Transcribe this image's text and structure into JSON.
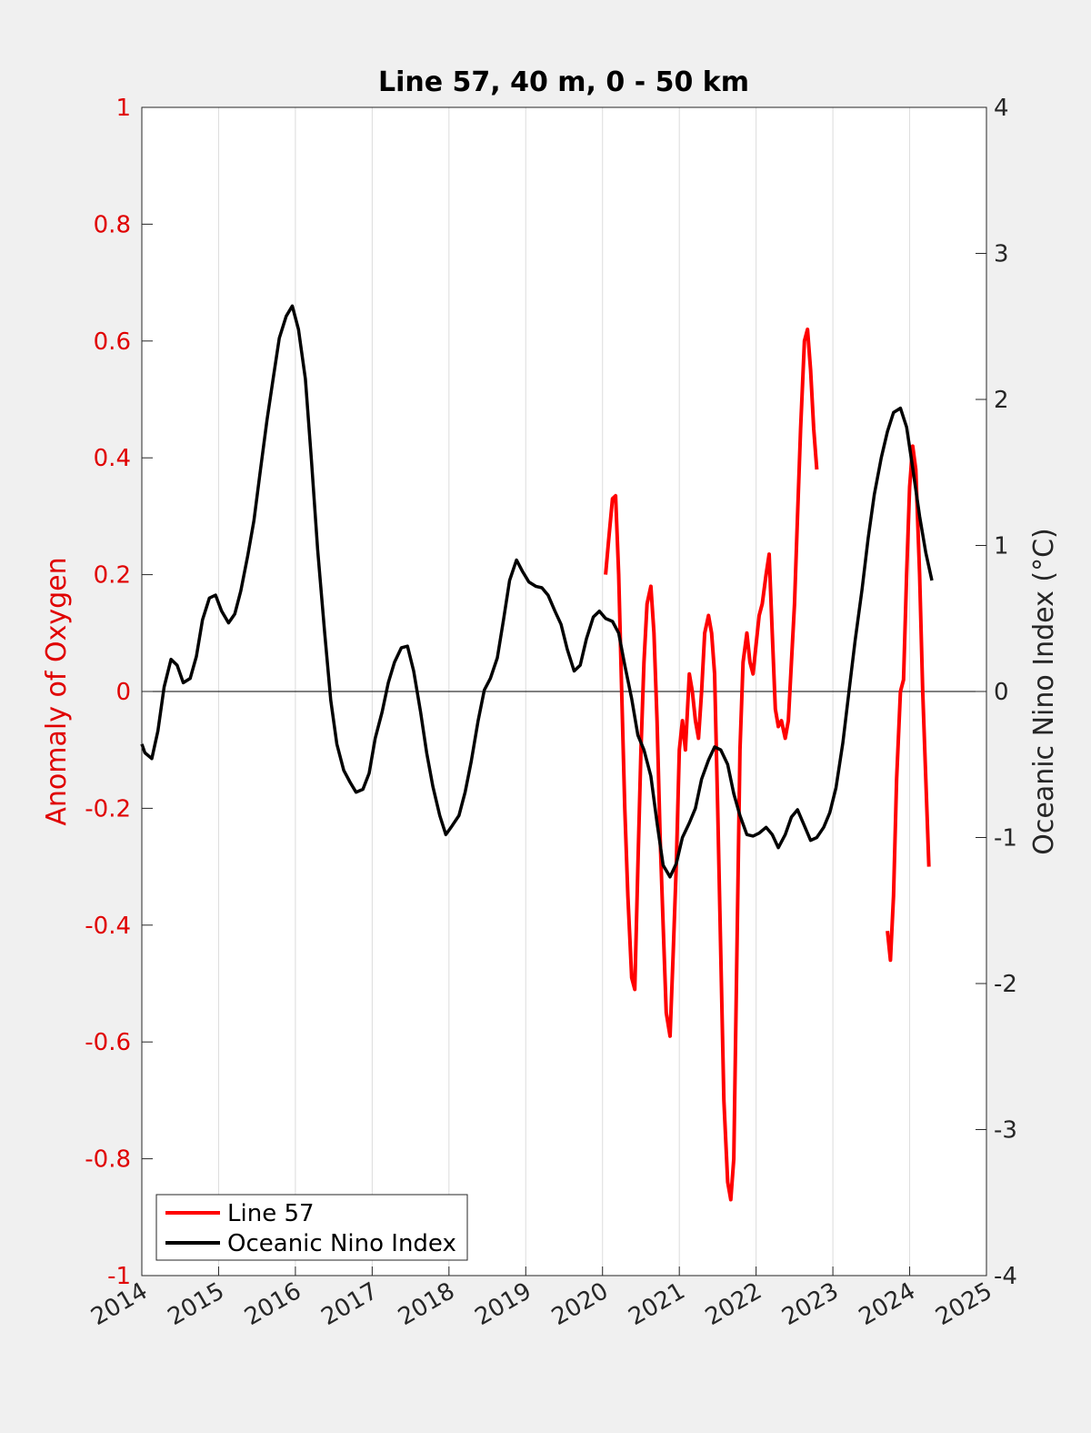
{
  "chart_data": {
    "type": "line",
    "title": "Line 57, 40 m, 0 - 50 km",
    "ylabel_left": "Anomaly of Oxygen",
    "ylabel_right": "Oceanic Nino Index (°C)",
    "xlabel": "",
    "xlim": [
      2014,
      2025
    ],
    "ylim_left": [
      -1,
      1
    ],
    "ylim_right": [
      -4,
      4
    ],
    "x_ticks": [
      "2014",
      "2015",
      "2016",
      "2017",
      "2018",
      "2019",
      "2020",
      "2021",
      "2022",
      "2023",
      "2024",
      "2025"
    ],
    "y_ticks_left": [
      "-1",
      "-0.8",
      "-0.6",
      "-0.4",
      "-0.2",
      "0",
      "0.2",
      "0.4",
      "0.6",
      "0.8",
      "1"
    ],
    "y_ticks_right": [
      "-4",
      "-3",
      "-2",
      "-1",
      "0",
      "1",
      "2",
      "3",
      "4"
    ],
    "grid": "vertical",
    "zero_line": true,
    "legend_position": "bottom-left",
    "colors": {
      "line57": "#ff0000",
      "oni": "#000000",
      "left_axis": "#e00000"
    },
    "series": [
      {
        "name": "Line 57",
        "axis": "left",
        "segments": [
          [
            [
              2020.04,
              0.2
            ],
            [
              2020.08,
              0.26
            ],
            [
              2020.13,
              0.33
            ],
            [
              2020.17,
              0.335
            ],
            [
              2020.21,
              0.2
            ],
            [
              2020.25,
              0.0
            ],
            [
              2020.29,
              -0.2
            ],
            [
              2020.33,
              -0.35
            ],
            [
              2020.38,
              -0.49
            ],
            [
              2020.42,
              -0.51
            ],
            [
              2020.46,
              -0.3
            ],
            [
              2020.5,
              -0.1
            ],
            [
              2020.54,
              0.05
            ],
            [
              2020.58,
              0.15
            ],
            [
              2020.63,
              0.18
            ],
            [
              2020.67,
              0.1
            ],
            [
              2020.71,
              -0.05
            ],
            [
              2020.75,
              -0.25
            ],
            [
              2020.79,
              -0.4
            ],
            [
              2020.83,
              -0.55
            ],
            [
              2020.88,
              -0.59
            ],
            [
              2020.92,
              -0.45
            ],
            [
              2020.96,
              -0.3
            ],
            [
              2021.0,
              -0.1
            ],
            [
              2021.04,
              -0.05
            ],
            [
              2021.08,
              -0.1
            ],
            [
              2021.13,
              0.03
            ],
            [
              2021.17,
              0.0
            ],
            [
              2021.21,
              -0.05
            ],
            [
              2021.25,
              -0.08
            ],
            [
              2021.29,
              0.0
            ],
            [
              2021.33,
              0.1
            ],
            [
              2021.38,
              0.13
            ],
            [
              2021.42,
              0.1
            ],
            [
              2021.46,
              0.03
            ],
            [
              2021.5,
              -0.2
            ],
            [
              2021.54,
              -0.45
            ],
            [
              2021.58,
              -0.7
            ],
            [
              2021.63,
              -0.84
            ],
            [
              2021.67,
              -0.87
            ],
            [
              2021.71,
              -0.8
            ],
            [
              2021.75,
              -0.45
            ],
            [
              2021.79,
              -0.1
            ],
            [
              2021.83,
              0.05
            ],
            [
              2021.88,
              0.1
            ],
            [
              2021.92,
              0.05
            ],
            [
              2021.96,
              0.03
            ],
            [
              2022.0,
              0.08
            ],
            [
              2022.04,
              0.13
            ],
            [
              2022.08,
              0.15
            ],
            [
              2022.13,
              0.2
            ],
            [
              2022.17,
              0.235
            ],
            [
              2022.21,
              0.1
            ],
            [
              2022.25,
              -0.03
            ],
            [
              2022.29,
              -0.06
            ],
            [
              2022.33,
              -0.05
            ],
            [
              2022.38,
              -0.08
            ],
            [
              2022.42,
              -0.05
            ],
            [
              2022.46,
              0.05
            ],
            [
              2022.5,
              0.15
            ],
            [
              2022.54,
              0.3
            ],
            [
              2022.58,
              0.45
            ],
            [
              2022.63,
              0.6
            ],
            [
              2022.67,
              0.62
            ],
            [
              2022.71,
              0.55
            ],
            [
              2022.75,
              0.45
            ],
            [
              2022.79,
              0.38
            ]
          ],
          [
            [
              2023.71,
              -0.41
            ],
            [
              2023.75,
              -0.46
            ],
            [
              2023.79,
              -0.35
            ],
            [
              2023.83,
              -0.15
            ],
            [
              2023.88,
              0.0
            ],
            [
              2023.92,
              0.02
            ],
            [
              2023.96,
              0.2
            ],
            [
              2024.0,
              0.35
            ],
            [
              2024.04,
              0.42
            ],
            [
              2024.08,
              0.38
            ],
            [
              2024.13,
              0.2
            ],
            [
              2024.17,
              0.0
            ],
            [
              2024.21,
              -0.15
            ],
            [
              2024.25,
              -0.3
            ]
          ]
        ]
      },
      {
        "name": "Oceanic Nino Index",
        "axis": "right",
        "points": [
          [
            2014.0,
            -0.36
          ],
          [
            2014.04,
            -0.42
          ],
          [
            2014.13,
            -0.46
          ],
          [
            2014.21,
            -0.27
          ],
          [
            2014.29,
            0.03
          ],
          [
            2014.38,
            0.22
          ],
          [
            2014.46,
            0.18
          ],
          [
            2014.54,
            0.06
          ],
          [
            2014.63,
            0.09
          ],
          [
            2014.71,
            0.24
          ],
          [
            2014.79,
            0.49
          ],
          [
            2014.88,
            0.64
          ],
          [
            2014.96,
            0.66
          ],
          [
            2015.04,
            0.55
          ],
          [
            2015.13,
            0.47
          ],
          [
            2015.21,
            0.53
          ],
          [
            2015.29,
            0.69
          ],
          [
            2015.38,
            0.93
          ],
          [
            2015.46,
            1.17
          ],
          [
            2015.54,
            1.5
          ],
          [
            2015.63,
            1.86
          ],
          [
            2015.71,
            2.14
          ],
          [
            2015.79,
            2.42
          ],
          [
            2015.88,
            2.57
          ],
          [
            2015.96,
            2.64
          ],
          [
            2016.04,
            2.48
          ],
          [
            2016.13,
            2.14
          ],
          [
            2016.21,
            1.58
          ],
          [
            2016.29,
            0.97
          ],
          [
            2016.38,
            0.41
          ],
          [
            2016.46,
            -0.06
          ],
          [
            2016.54,
            -0.36
          ],
          [
            2016.63,
            -0.54
          ],
          [
            2016.71,
            -0.62
          ],
          [
            2016.79,
            -0.69
          ],
          [
            2016.88,
            -0.67
          ],
          [
            2016.96,
            -0.56
          ],
          [
            2017.04,
            -0.32
          ],
          [
            2017.13,
            -0.14
          ],
          [
            2017.21,
            0.06
          ],
          [
            2017.29,
            0.2
          ],
          [
            2017.38,
            0.3
          ],
          [
            2017.46,
            0.31
          ],
          [
            2017.54,
            0.14
          ],
          [
            2017.63,
            -0.14
          ],
          [
            2017.71,
            -0.42
          ],
          [
            2017.79,
            -0.65
          ],
          [
            2017.88,
            -0.85
          ],
          [
            2017.96,
            -0.98
          ],
          [
            2018.04,
            -0.92
          ],
          [
            2018.13,
            -0.85
          ],
          [
            2018.21,
            -0.69
          ],
          [
            2018.29,
            -0.48
          ],
          [
            2018.38,
            -0.2
          ],
          [
            2018.46,
            0.01
          ],
          [
            2018.54,
            0.09
          ],
          [
            2018.63,
            0.23
          ],
          [
            2018.71,
            0.49
          ],
          [
            2018.79,
            0.76
          ],
          [
            2018.88,
            0.9
          ],
          [
            2018.96,
            0.82
          ],
          [
            2019.04,
            0.75
          ],
          [
            2019.13,
            0.72
          ],
          [
            2019.21,
            0.71
          ],
          [
            2019.29,
            0.66
          ],
          [
            2019.38,
            0.55
          ],
          [
            2019.46,
            0.46
          ],
          [
            2019.54,
            0.29
          ],
          [
            2019.63,
            0.14
          ],
          [
            2019.71,
            0.18
          ],
          [
            2019.79,
            0.36
          ],
          [
            2019.88,
            0.51
          ],
          [
            2019.96,
            0.55
          ],
          [
            2020.04,
            0.5
          ],
          [
            2020.13,
            0.48
          ],
          [
            2020.21,
            0.4
          ],
          [
            2020.29,
            0.18
          ],
          [
            2020.38,
            -0.05
          ],
          [
            2020.46,
            -0.3
          ],
          [
            2020.54,
            -0.4
          ],
          [
            2020.63,
            -0.58
          ],
          [
            2020.71,
            -0.9
          ],
          [
            2020.79,
            -1.19
          ],
          [
            2020.88,
            -1.27
          ],
          [
            2020.96,
            -1.18
          ],
          [
            2021.04,
            -1.0
          ],
          [
            2021.13,
            -0.9
          ],
          [
            2021.21,
            -0.8
          ],
          [
            2021.29,
            -0.6
          ],
          [
            2021.38,
            -0.47
          ],
          [
            2021.46,
            -0.38
          ],
          [
            2021.54,
            -0.4
          ],
          [
            2021.63,
            -0.5
          ],
          [
            2021.71,
            -0.7
          ],
          [
            2021.79,
            -0.85
          ],
          [
            2021.88,
            -0.98
          ],
          [
            2021.96,
            -0.99
          ],
          [
            2022.04,
            -0.97
          ],
          [
            2022.13,
            -0.93
          ],
          [
            2022.21,
            -0.98
          ],
          [
            2022.29,
            -1.07
          ],
          [
            2022.38,
            -0.98
          ],
          [
            2022.46,
            -0.86
          ],
          [
            2022.54,
            -0.81
          ],
          [
            2022.63,
            -0.92
          ],
          [
            2022.71,
            -1.02
          ],
          [
            2022.79,
            -1.0
          ],
          [
            2022.88,
            -0.93
          ],
          [
            2022.96,
            -0.83
          ],
          [
            2023.04,
            -0.66
          ],
          [
            2023.13,
            -0.35
          ],
          [
            2023.21,
            0.0
          ],
          [
            2023.29,
            0.35
          ],
          [
            2023.38,
            0.7
          ],
          [
            2023.46,
            1.05
          ],
          [
            2023.54,
            1.35
          ],
          [
            2023.63,
            1.6
          ],
          [
            2023.71,
            1.78
          ],
          [
            2023.79,
            1.91
          ],
          [
            2023.88,
            1.94
          ],
          [
            2023.96,
            1.81
          ],
          [
            2024.04,
            1.53
          ],
          [
            2024.13,
            1.2
          ],
          [
            2024.21,
            0.95
          ],
          [
            2024.29,
            0.76
          ]
        ]
      }
    ]
  }
}
